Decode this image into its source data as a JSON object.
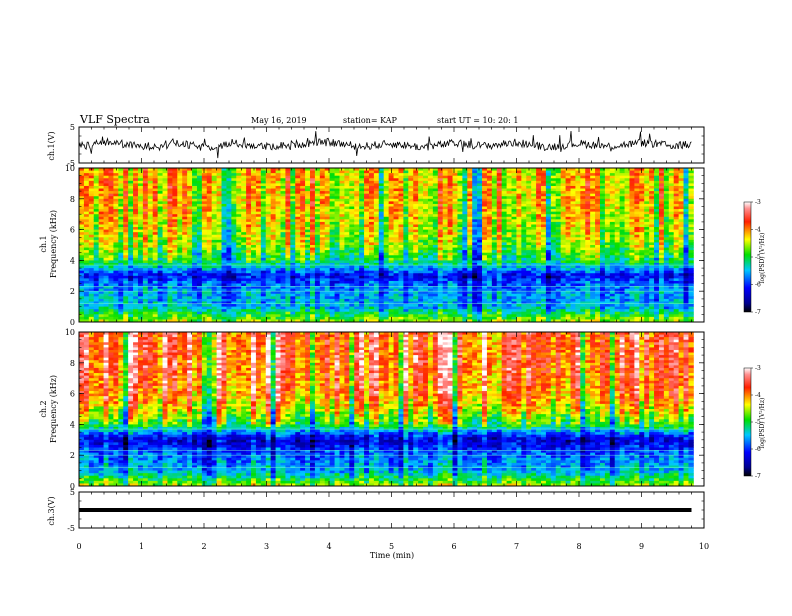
{
  "header": {
    "title": "VLF Spectra",
    "date": "May 16, 2019",
    "station": "station= KAP",
    "start_time": "start  UT  =   10: 20: 1"
  },
  "chart_data": [
    {
      "type": "line",
      "panel": "ch1-waveform",
      "ylabel": "ch.1(V)",
      "ylim": [
        -5,
        5
      ],
      "yticks": [
        "5",
        "-5"
      ],
      "xlim": [
        0,
        10
      ],
      "series": [
        {
          "description_values": "noisy waveform centered near 0 V, amplitude roughly ±1.5 V with spikes to ±3 V",
          "x": [
            0,
            0.5,
            1,
            1.5,
            2,
            2.5,
            3,
            3.5,
            4,
            4.5,
            5,
            5.5,
            6,
            6.5,
            7,
            7.5,
            8,
            8.5,
            9,
            9.5,
            9.8
          ],
          "y": [
            -0.5,
            1.2,
            -0.8,
            0.9,
            -1.0,
            0.6,
            -0.7,
            0.4,
            1.1,
            -0.6,
            0.5,
            -0.9,
            0.7,
            -0.4,
            1.0,
            -0.8,
            0.6,
            -0.5,
            0.9,
            -0.3,
            0.2
          ]
        }
      ]
    },
    {
      "type": "heatmap",
      "panel": "ch1-spectrogram",
      "ylabel": "ch.1\nFrequency (kHz)",
      "ylabel_line1": "ch.1",
      "ylabel_line2": "Frequency (kHz)",
      "ylim": [
        0,
        10
      ],
      "yticks": [
        "0",
        "2",
        "4",
        "6",
        "8",
        "10"
      ],
      "xlim": [
        0,
        10
      ],
      "colorbar": {
        "label": "log(PSD) (V²/Hz)",
        "range": [
          -7,
          -3
        ],
        "ticks": [
          "-3",
          "-4",
          "-5",
          "-6",
          "-7"
        ]
      },
      "frequency_profile_kHz": [
        0,
        0.5,
        1,
        2,
        2.5,
        3,
        3.5,
        4,
        5,
        6,
        7,
        8,
        9,
        10
      ],
      "log_psd_typical": [
        -4.5,
        -5.0,
        -5.5,
        -5.6,
        -5.8,
        -6.2,
        -5.5,
        -5.0,
        -4.6,
        -4.4,
        -4.3,
        -4.2,
        -4.2,
        -4.2
      ]
    },
    {
      "type": "heatmap",
      "panel": "ch2-spectrogram",
      "ylabel_line1": "ch.2",
      "ylabel_line2": "Frequency (kHz)",
      "ylim": [
        0,
        10
      ],
      "yticks": [
        "0",
        "2",
        "4",
        "6",
        "8",
        "10"
      ],
      "xlim": [
        0,
        10
      ],
      "colorbar": {
        "label": "log(PSD) (V²/Hz)",
        "range": [
          -7,
          -3
        ],
        "ticks": [
          "-3",
          "-4",
          "-5",
          "-6",
          "-7"
        ]
      },
      "frequency_profile_kHz": [
        0,
        0.5,
        1,
        2,
        2.5,
        3,
        3.5,
        4,
        5,
        6,
        7,
        8,
        9,
        10
      ],
      "log_psd_typical": [
        -4.5,
        -5.0,
        -5.5,
        -5.7,
        -6.0,
        -6.3,
        -5.6,
        -4.8,
        -4.2,
        -3.8,
        -3.7,
        -3.6,
        -3.6,
        -3.6
      ]
    },
    {
      "type": "line",
      "panel": "ch3-waveform",
      "ylabel": "ch.3(V)",
      "ylim": [
        -5,
        5
      ],
      "yticks": [
        "5",
        "-5"
      ],
      "xlim": [
        0,
        10
      ],
      "xlabel": "Time (min)",
      "xticks": [
        "0",
        "1",
        "2",
        "3",
        "4",
        "5",
        "6",
        "7",
        "8",
        "9",
        "10"
      ],
      "series": [
        {
          "x": [
            0,
            9.8
          ],
          "y": [
            0,
            0
          ]
        }
      ]
    }
  ]
}
